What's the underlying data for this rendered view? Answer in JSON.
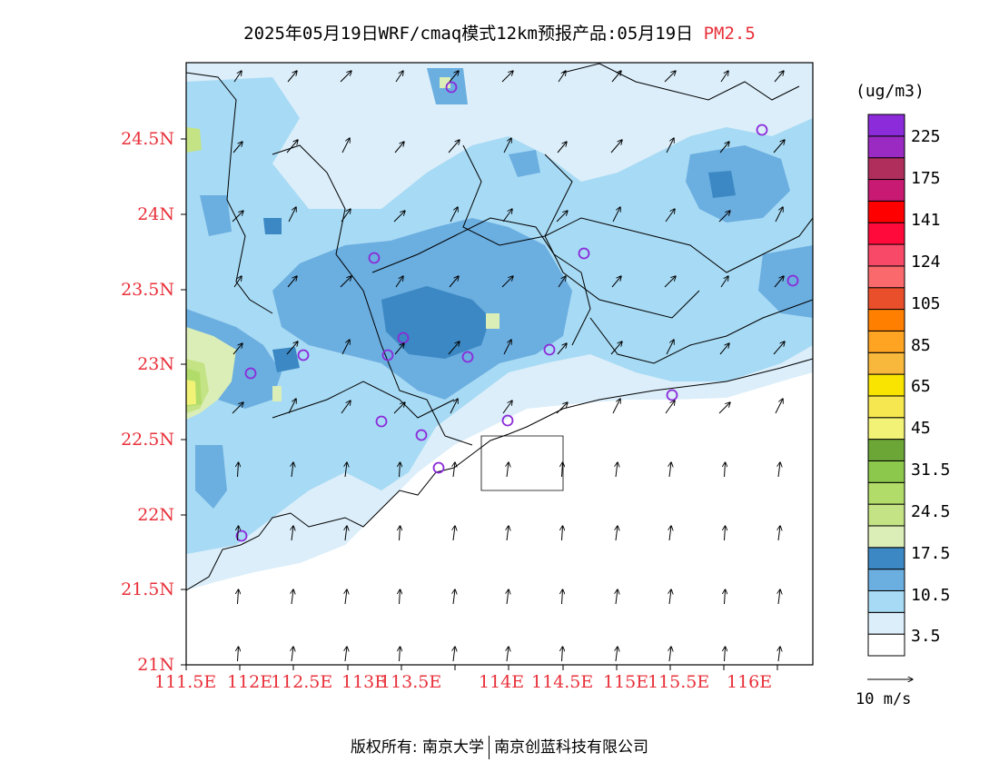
{
  "title": {
    "main": "2025年05月19日WRF/cmaq模式12km预报产品:05月19日",
    "variable": "PM2.5",
    "variable_color": "#e8303a"
  },
  "colorbar": {
    "units": "(ug/m3)",
    "colors": [
      "#ffffff",
      "#dbeefa",
      "#a7daf4",
      "#6baee0",
      "#3b88c4",
      "#dbeeb8",
      "#c4e384",
      "#b2dc6a",
      "#8cc84c",
      "#6ca637",
      "#f2f276",
      "#f6e650",
      "#f8e400",
      "#f8b83c",
      "#ffa322",
      "#ff8000",
      "#ea4f2c",
      "#fa6a6c",
      "#f84a68",
      "#ff0a3a",
      "#ff0000",
      "#c81a72",
      "#b02e5c",
      "#9a2ac2",
      "#8b2bd9"
    ],
    "labels": [
      "3.5",
      "10.5",
      "17.5",
      "24.5",
      "31.5",
      "45",
      "65",
      "85",
      "105",
      "124",
      "141",
      "175",
      "225"
    ]
  },
  "axes": {
    "lat_ticks": [
      "24.5N",
      "24N",
      "23.5N",
      "23N",
      "22.5N",
      "22N",
      "21.5N",
      "21N"
    ],
    "lon_ticks": [
      "111.5E",
      "112E",
      "112.5E",
      "113E",
      "113.5E",
      "114E",
      "114.5E",
      "115E",
      "115.5E",
      "116E"
    ],
    "tick_color": "#e8303a"
  },
  "wind_reference": {
    "label": "10 m/s"
  },
  "copyright": {
    "left": "版权所有: 南京大学",
    "right": "南京创蓝科技有限公司"
  }
}
